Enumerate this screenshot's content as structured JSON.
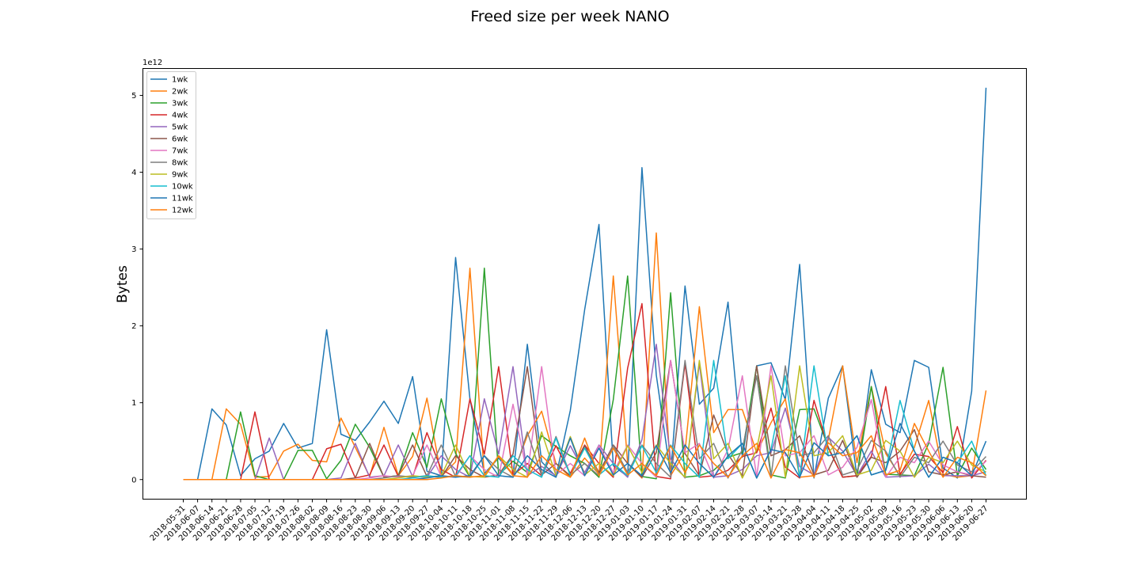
{
  "chart_data": {
    "type": "line",
    "title": "Freed size per week NANO",
    "xlabel": "",
    "ylabel": "Bytes",
    "y_offset_text": "1e12",
    "y_unit_multiplier": 1000000000000.0,
    "ylim": [
      -0.255,
      5.35
    ],
    "yticks": [
      0,
      1,
      2,
      3,
      4,
      5
    ],
    "legend_position": "upper-left",
    "grid": false,
    "categories": [
      "2018-05-31",
      "2018-06-07",
      "2018-06-14",
      "2018-06-21",
      "2018-06-28",
      "2018-07-05",
      "2018-07-12",
      "2018-07-19",
      "2018-07-26",
      "2018-08-02",
      "2018-08-09",
      "2018-08-16",
      "2018-08-23",
      "2018-08-30",
      "2018-09-06",
      "2018-09-13",
      "2018-09-20",
      "2018-09-27",
      "2018-10-04",
      "2018-10-11",
      "2018-10-18",
      "2018-10-25",
      "2018-11-01",
      "2018-11-08",
      "2018-11-15",
      "2018-11-22",
      "2018-11-29",
      "2018-12-06",
      "2018-12-13",
      "2018-12-20",
      "2018-12-27",
      "2019-01-03",
      "2019-01-10",
      "2019-01-17",
      "2019-01-24",
      "2019-01-31",
      "2019-02-07",
      "2019-02-14",
      "2019-02-21",
      "2019-02-28",
      "2019-03-07",
      "2019-03-14",
      "2019-03-21",
      "2019-03-28",
      "2019-04-04",
      "2019-04-11",
      "2019-04-18",
      "2019-04-25",
      "2019-05-02",
      "2019-05-09",
      "2019-05-16",
      "2019-05-23",
      "2019-05-30",
      "2019-06-06",
      "2019-06-13",
      "2019-06-20",
      "2019-06-27"
    ],
    "series": [
      {
        "name": "1wk",
        "color": "#1f77b4",
        "values": [
          0,
          0,
          0.92,
          0.71,
          0.05,
          0.27,
          0.37,
          0.73,
          0.41,
          0.47,
          1.95,
          0.59,
          0.51,
          0.75,
          1.02,
          0.73,
          1.34,
          0.11,
          0.05,
          2.89,
          1.05,
          0.08,
          0.28,
          0.06,
          1.76,
          0.23,
          0.04,
          0.9,
          2.21,
          3.32,
          0.18,
          0.04,
          4.06,
          1.36,
          0.06,
          2.52,
          0.98,
          1.19,
          2.31,
          0.29,
          1.48,
          1.52,
          1.04,
          2.8,
          0.02,
          1.06,
          1.48,
          0.03,
          1.43,
          0.72,
          0.61,
          1.55,
          1.46,
          0.15,
          0.02,
          1.15,
          5.1
        ]
      },
      {
        "name": "2wk",
        "color": "#ff7f0e",
        "values": [
          0,
          0,
          0,
          0.92,
          0.72,
          0.03,
          0.04,
          0.37,
          0.46,
          0.25,
          0.23,
          0.8,
          0.42,
          0.04,
          0.68,
          0.05,
          0.3,
          1.06,
          0.04,
          0.23,
          2.75,
          0.05,
          0.3,
          0.07,
          0.57,
          0.89,
          0.21,
          0.03,
          0.28,
          0.07,
          2.65,
          0.21,
          0.02,
          3.21,
          0.05,
          0.36,
          2.25,
          0.61,
          0.91,
          0.91,
          0.35,
          0.74,
          1.05,
          0.03,
          0.05,
          0.52,
          1.48,
          0.22,
          1.21,
          0.34,
          0.05,
          0.42,
          1.03,
          0.07,
          0.03,
          0.05,
          1.16
        ]
      },
      {
        "name": "3wk",
        "color": "#2ca02c",
        "values": [
          0,
          0,
          0,
          0,
          0.88,
          0.05,
          0,
          0,
          0.38,
          0.38,
          0.01,
          0.25,
          0.72,
          0.42,
          0.03,
          0.05,
          0.61,
          0.16,
          1.05,
          0.34,
          0.03,
          2.75,
          0.06,
          0.24,
          0.09,
          0.57,
          0.43,
          0.31,
          0.21,
          0.03,
          1.04,
          2.65,
          0.04,
          0.01,
          2.43,
          0.03,
          0.05,
          0.12,
          0.29,
          0.35,
          1.48,
          0.06,
          0.02,
          0.91,
          0.92,
          0.42,
          0.03,
          0.05,
          1.21,
          0.07,
          0.06,
          0.05,
          0.47,
          1.46,
          0.05,
          0.41,
          0.13
        ]
      },
      {
        "name": "4wk",
        "color": "#d62728",
        "values": [
          0,
          0,
          0,
          0,
          0,
          0.88,
          0,
          0,
          0,
          0,
          0.4,
          0.46,
          0.02,
          0.06,
          0.45,
          0.04,
          0.03,
          0.61,
          0.13,
          0.03,
          1.05,
          0.33,
          1.47,
          0.06,
          0.21,
          0.05,
          0.44,
          0.08,
          0.45,
          0.21,
          0.03,
          1.45,
          2.29,
          0.04,
          0.01,
          1.51,
          0.03,
          0.05,
          0.12,
          0.3,
          0.35,
          0.93,
          0.16,
          0.02,
          1.03,
          0.41,
          0.03,
          0.05,
          0.3,
          1.21,
          0.07,
          0.33,
          0.3,
          0.09,
          0.69,
          0.02,
          0.25
        ]
      },
      {
        "name": "5wk",
        "color": "#9467bd",
        "values": [
          0,
          0,
          0,
          0,
          0,
          0,
          0.54,
          0,
          0,
          0,
          0,
          0.02,
          0.47,
          0.03,
          0.05,
          0.45,
          0.04,
          0.03,
          0.31,
          0.13,
          0.03,
          1.05,
          0.33,
          1.47,
          0.05,
          0.17,
          0.05,
          0.44,
          0.09,
          0.45,
          0.21,
          0.03,
          0.52,
          1.76,
          0.27,
          0.02,
          1.51,
          0.03,
          0.05,
          0.13,
          0.31,
          0.35,
          0.93,
          0.17,
          0.06,
          0.55,
          0.37,
          0.05,
          0.37,
          0.03,
          0.04,
          0.05,
          0.2,
          0.05,
          0.05,
          0.05,
          0.1
        ]
      },
      {
        "name": "6wk",
        "color": "#8c564b",
        "values": [
          0,
          0,
          0,
          0,
          0,
          0,
          0,
          0,
          0,
          0,
          0,
          0,
          0.02,
          0.47,
          0.03,
          0.05,
          0.45,
          0.04,
          0.03,
          0.31,
          0.13,
          0.03,
          0.06,
          0.33,
          1.47,
          0.06,
          0.21,
          0.05,
          0.44,
          0.09,
          0.45,
          0.21,
          0.03,
          0.35,
          1.55,
          0.34,
          0.05,
          0.84,
          0.33,
          0.05,
          1.48,
          0.31,
          0.39,
          0.57,
          0.06,
          0.12,
          0.51,
          0.03,
          0.29,
          0.22,
          0.37,
          0.65,
          0.1,
          0.06,
          0.1,
          0.05,
          0.03
        ]
      },
      {
        "name": "7wk",
        "color": "#e377c2",
        "values": [
          0,
          0,
          0,
          0,
          0,
          0,
          0,
          0,
          0,
          0,
          0,
          0,
          0,
          0.02,
          0.05,
          0.03,
          0.05,
          0.45,
          0.04,
          0.03,
          0.31,
          0.13,
          0.03,
          0.98,
          0.06,
          1.47,
          0.06,
          0.21,
          0.05,
          0.44,
          0.09,
          0.45,
          0.21,
          0.03,
          1.55,
          0.35,
          0.47,
          0.02,
          0.39,
          1.35,
          0.03,
          1.48,
          0.31,
          0.35,
          0.57,
          0.06,
          0.16,
          0.42,
          1.04,
          0.03,
          0.29,
          0.22,
          0.5,
          0.19,
          0.1,
          0.06,
          0.24
        ]
      },
      {
        "name": "8wk",
        "color": "#7f7f7f",
        "values": [
          0,
          0,
          0,
          0,
          0,
          0,
          0,
          0,
          0,
          0,
          0,
          0,
          0,
          0,
          0.02,
          0.05,
          0.03,
          0.05,
          0.45,
          0.04,
          0.03,
          0.31,
          0.13,
          0.03,
          0.62,
          0.05,
          0.56,
          0.06,
          0.21,
          0.05,
          0.44,
          0.09,
          0.45,
          0.21,
          0.03,
          1.55,
          0.27,
          0.47,
          0.02,
          0.39,
          1.35,
          0.03,
          1.48,
          0.31,
          0.35,
          0.57,
          0.06,
          0.12,
          0.51,
          0.37,
          0.03,
          0.29,
          0.22,
          0.5,
          0.19,
          0.1,
          0.3
        ]
      },
      {
        "name": "9wk",
        "color": "#bcbd22",
        "values": [
          0,
          0,
          0,
          0,
          0,
          0,
          0,
          0,
          0,
          0,
          0,
          0,
          0,
          0,
          0,
          0.02,
          0.05,
          0.03,
          0.05,
          0.45,
          0.04,
          0.03,
          0.31,
          0.13,
          0.03,
          0.62,
          0.05,
          0.56,
          0.06,
          0.21,
          0.05,
          0.44,
          0.09,
          0.45,
          0.21,
          0.03,
          1.55,
          0.27,
          0.47,
          0.02,
          0.39,
          1.35,
          0.03,
          1.48,
          0.31,
          0.35,
          0.57,
          0.06,
          0.12,
          0.51,
          0.37,
          0.03,
          0.29,
          0.22,
          0.5,
          0.19,
          0.1
        ]
      },
      {
        "name": "10wk",
        "color": "#17becf",
        "values": [
          0,
          0,
          0,
          0,
          0,
          0,
          0,
          0,
          0,
          0,
          0,
          0,
          0,
          0,
          0,
          0,
          0.02,
          0.05,
          0.03,
          0.05,
          0.31,
          0.05,
          0.03,
          0.31,
          0.13,
          0.03,
          0.54,
          0.05,
          0.41,
          0.06,
          0.21,
          0.05,
          0.44,
          0.09,
          0.45,
          0.21,
          0.03,
          1.55,
          0.27,
          0.47,
          0.02,
          0.39,
          1.35,
          0.03,
          1.48,
          0.31,
          0.35,
          0.57,
          0.06,
          0.12,
          1.03,
          0.37,
          0.03,
          0.29,
          0.22,
          0.5,
          0.05
        ]
      },
      {
        "name": "11wk",
        "color": "#1f77b4",
        "values": [
          0,
          0,
          0,
          0,
          0,
          0,
          0,
          0,
          0,
          0,
          0,
          0,
          0,
          0,
          0,
          0,
          0,
          0.02,
          0.05,
          0.03,
          0.05,
          0.31,
          0.05,
          0.03,
          0.31,
          0.13,
          0.03,
          0.54,
          0.05,
          0.41,
          0.06,
          0.21,
          0.05,
          0.44,
          0.09,
          0.45,
          0.21,
          0.03,
          0.31,
          0.47,
          0.02,
          0.39,
          0.35,
          0.03,
          0.48,
          0.31,
          0.35,
          0.57,
          0.06,
          0.12,
          0.73,
          0.37,
          0.03,
          0.29,
          0.22,
          0.05,
          0.5
        ]
      },
      {
        "name": "12wk",
        "color": "#ff7f0e",
        "values": [
          0,
          0,
          0,
          0,
          0,
          0,
          0,
          0,
          0,
          0,
          0,
          0,
          0,
          0,
          0,
          0,
          0,
          0,
          0.02,
          0.05,
          0.03,
          0.05,
          0.31,
          0.05,
          0.03,
          0.31,
          0.13,
          0.03,
          0.54,
          0.05,
          0.41,
          0.06,
          0.21,
          0.05,
          0.44,
          0.09,
          0.45,
          0.21,
          0.03,
          0.31,
          0.47,
          0.02,
          0.39,
          0.35,
          0.03,
          0.48,
          0.31,
          0.35,
          0.57,
          0.06,
          0.12,
          0.73,
          0.37,
          0.03,
          0.29,
          0.22,
          0.05
        ]
      }
    ]
  }
}
